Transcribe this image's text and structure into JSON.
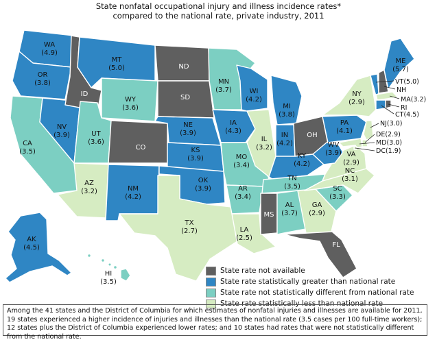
{
  "title": {
    "line1": "State nonfatal occupational injury and illness incidence rates*",
    "line2": "compared to the national rate, private industry, 2011"
  },
  "colors": {
    "not_available": "#5f5f5f",
    "greater": "#2f86c4",
    "not_different": "#7ccfc2",
    "less": "#d6ecc2"
  },
  "legend": [
    {
      "key": "not_available",
      "label": "State rate not available"
    },
    {
      "key": "greater",
      "label": "State rate statistically greater than national rate"
    },
    {
      "key": "not_different",
      "label": "State rate not statistically different from national rate"
    },
    {
      "key": "less",
      "label": "State rate statistically less than national rate"
    }
  ],
  "states": {
    "WA": {
      "name": "WA",
      "rate": "(4.9)",
      "category": "greater"
    },
    "OR": {
      "name": "OR",
      "rate": "(3.8)",
      "category": "greater"
    },
    "CA": {
      "name": "CA",
      "rate": "(3.5)",
      "category": "not_different"
    },
    "NV": {
      "name": "NV",
      "rate": "(3.9)",
      "category": "greater"
    },
    "ID": {
      "name": "ID",
      "rate": "",
      "category": "not_available"
    },
    "MT": {
      "name": "MT",
      "rate": "(5.0)",
      "category": "greater"
    },
    "WY": {
      "name": "WY",
      "rate": "(3.6)",
      "category": "not_different"
    },
    "UT": {
      "name": "UT",
      "rate": "(3.6)",
      "category": "not_different"
    },
    "CO": {
      "name": "CO",
      "rate": "",
      "category": "not_available"
    },
    "AZ": {
      "name": "AZ",
      "rate": "(3.2)",
      "category": "less"
    },
    "NM": {
      "name": "NM",
      "rate": "(4.2)",
      "category": "greater"
    },
    "ND": {
      "name": "ND",
      "rate": "",
      "category": "not_available"
    },
    "SD": {
      "name": "SD",
      "rate": "",
      "category": "not_available"
    },
    "NE": {
      "name": "NE",
      "rate": "(3.9)",
      "category": "greater"
    },
    "KS": {
      "name": "KS",
      "rate": "(3.9)",
      "category": "greater"
    },
    "OK": {
      "name": "OK",
      "rate": "(3.9)",
      "category": "greater"
    },
    "TX": {
      "name": "TX",
      "rate": "(2.7)",
      "category": "less"
    },
    "MN": {
      "name": "MN",
      "rate": "(3.7)",
      "category": "not_different"
    },
    "IA": {
      "name": "IA",
      "rate": "(4.3)",
      "category": "greater"
    },
    "MO": {
      "name": "MO",
      "rate": "(3.4)",
      "category": "not_different"
    },
    "AR": {
      "name": "AR",
      "rate": "(3.4)",
      "category": "not_different"
    },
    "LA": {
      "name": "LA",
      "rate": "(2.5)",
      "category": "less"
    },
    "WI": {
      "name": "WI",
      "rate": "(4.2)",
      "category": "greater"
    },
    "IL": {
      "name": "IL",
      "rate": "(3.2)",
      "category": "less"
    },
    "MI": {
      "name": "MI",
      "rate": "(3.8)",
      "category": "greater"
    },
    "IN": {
      "name": "IN",
      "rate": "(4.2)",
      "category": "greater"
    },
    "OH": {
      "name": "OH",
      "rate": "",
      "category": "not_available"
    },
    "KY": {
      "name": "KY",
      "rate": "(4.2)",
      "category": "greater"
    },
    "TN": {
      "name": "TN",
      "rate": "(3.5)",
      "category": "not_different"
    },
    "MS": {
      "name": "MS",
      "rate": "",
      "category": "not_available"
    },
    "AL": {
      "name": "AL",
      "rate": "(3.7)",
      "category": "not_different"
    },
    "GA": {
      "name": "GA",
      "rate": "(2.9)",
      "category": "less"
    },
    "FL": {
      "name": "FL",
      "rate": "",
      "category": "not_available"
    },
    "SC": {
      "name": "SC",
      "rate": "(3.3)",
      "category": "not_different"
    },
    "NC": {
      "name": "NC",
      "rate": "(3.1)",
      "category": "less"
    },
    "VA": {
      "name": "VA",
      "rate": "(2.9)",
      "category": "less"
    },
    "WV": {
      "name": "WV",
      "rate": "(3.9)",
      "category": "greater"
    },
    "PA": {
      "name": "PA",
      "rate": "(4.1)",
      "category": "greater"
    },
    "NY": {
      "name": "NY",
      "rate": "(2.9)",
      "category": "less"
    },
    "ME": {
      "name": "ME",
      "rate": "(5.7)",
      "category": "greater"
    },
    "VT": {
      "name": "VT",
      "rate": "(5.0)",
      "category": "greater"
    },
    "NH": {
      "name": "NH",
      "rate": "",
      "category": "not_available"
    },
    "MA": {
      "name": "MA",
      "rate": "(3.2)",
      "category": "less"
    },
    "RI": {
      "name": "RI",
      "rate": "",
      "category": "not_available"
    },
    "CT": {
      "name": "CT",
      "rate": "(4.5)",
      "category": "greater"
    },
    "NJ": {
      "name": "NJ",
      "rate": "(3.0)",
      "category": "less"
    },
    "DE": {
      "name": "DE",
      "rate": "(2.9)",
      "category": "less"
    },
    "MD": {
      "name": "MD",
      "rate": "(3.0)",
      "category": "less"
    },
    "DC": {
      "name": "DC",
      "rate": "(1.9)",
      "category": "less"
    },
    "AK": {
      "name": "AK",
      "rate": "(4.5)",
      "category": "greater"
    },
    "HI": {
      "name": "HI",
      "rate": "(3.5)",
      "category": "not_different"
    }
  },
  "footnote": "Among the 41 states and the District of Columbia for which estimates of nonfatal injuries and illnesses are available for 2011, 19 states experienced a higher incidence of injuries and illnesses than the national rate (3.5 cases per 100 full-time workers); 12 states plus the District of Columbia experienced  lower rates; and 10 states had rates that were not statistically different from the national rate."
}
